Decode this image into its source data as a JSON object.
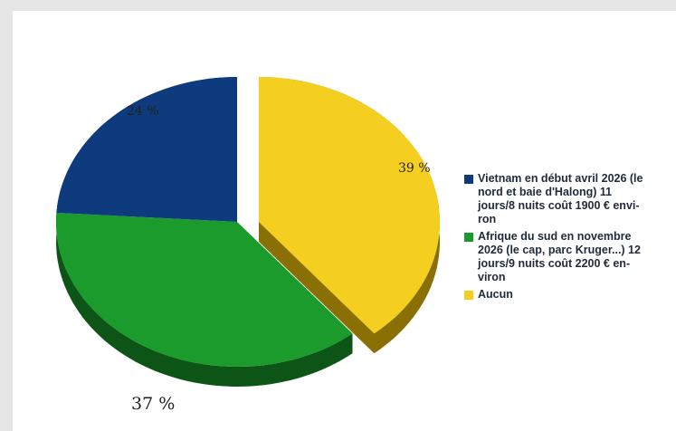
{
  "chart_data": {
    "type": "pie",
    "slices": [
      {
        "label": "Vietnam en début avril 2026 (le nord et baie d'Halong) 11 jours/8 nuits coût 1900 € environ",
        "value": 24,
        "display": "24 %",
        "color": "#0d3b7d",
        "side": "#06204a"
      },
      {
        "label": "Afrique du sud en novembre 2026 (le cap, parc Kruger...) 12 jours/9 nuits coût 2200 € environ",
        "value": 37,
        "display": "37 %",
        "color": "#1a9b2c",
        "side": "#0c5517"
      },
      {
        "label": "Aucun",
        "value": 39,
        "display": "39 %",
        "color": "#f5cf1f",
        "side": "#8a6f05"
      }
    ],
    "legend_position": "right"
  },
  "legend": {
    "items": [
      {
        "lines": [
          "Vietnam en début avril 2026 (le",
          "nord et baie d'Halong) 11",
          "jours/8 nuits coût 1900 € envi-",
          "ron"
        ],
        "color": "#0d3b7d"
      },
      {
        "lines": [
          "Afrique du sud en novembre",
          "2026 (le cap, parc Kruger...) 12",
          " jours/9 nuits coût 2200 € en-",
          "viron"
        ],
        "color": "#1a9b2c"
      },
      {
        "lines": [
          "Aucun"
        ],
        "color": "#f5cf1f"
      }
    ]
  }
}
